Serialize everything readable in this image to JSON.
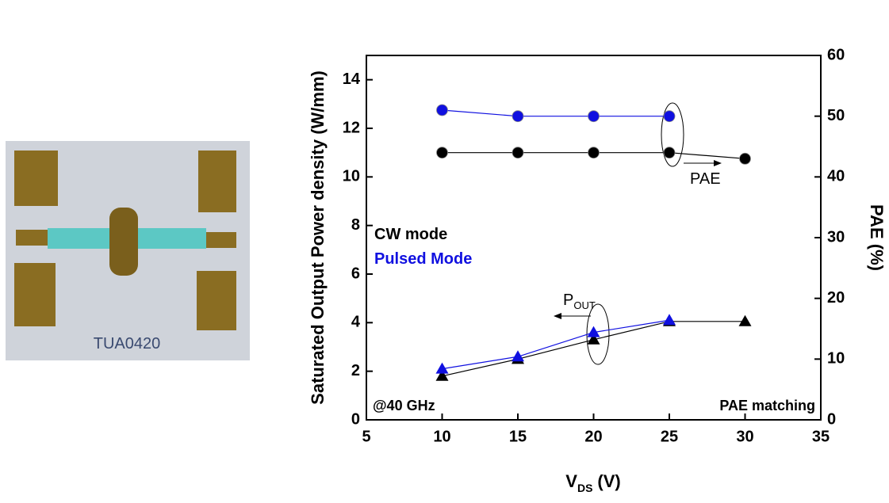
{
  "chart_data": {
    "type": "line",
    "x_label": {
      "text": "V",
      "sub": "DS",
      "unit": "(V)"
    },
    "y_label": "Saturated Output Power density (W/mm)",
    "y2_label": "PAE (%)",
    "x": [
      10,
      15,
      20,
      25,
      30
    ],
    "series": [
      {
        "name": "CW mode",
        "color": "#000000",
        "marker": "circle",
        "axis": "y2",
        "values": [
          44,
          44,
          44,
          44,
          43
        ]
      },
      {
        "name": "Pulsed Mode",
        "color": "#1010e0",
        "marker": "circle",
        "axis": "y2",
        "values": [
          51,
          50,
          50,
          50,
          null
        ]
      },
      {
        "name": "CW mode",
        "color": "#000000",
        "marker": "triangle",
        "values": [
          1.8,
          2.5,
          3.3,
          4.05,
          4.05
        ]
      },
      {
        "name": "Pulsed Mode",
        "color": "#1010e0",
        "marker": "triangle",
        "values": [
          2.1,
          2.6,
          3.6,
          4.1,
          null
        ]
      }
    ],
    "xlim": [
      5,
      35
    ],
    "xticks": [
      5,
      10,
      15,
      20,
      25,
      30,
      35
    ],
    "ylim": [
      0,
      15
    ],
    "yticks": [
      0,
      2,
      4,
      6,
      8,
      10,
      12,
      14
    ],
    "y2lim": [
      0,
      60
    ],
    "y2ticks": [
      0,
      10,
      20,
      30,
      40,
      50,
      60
    ],
    "annotations": [
      "@40 GHz",
      "PAE matching",
      "PAE"
    ],
    "pout_annotation": {
      "text": "P",
      "sub": "OUT"
    },
    "image_label": "TUA0420"
  }
}
